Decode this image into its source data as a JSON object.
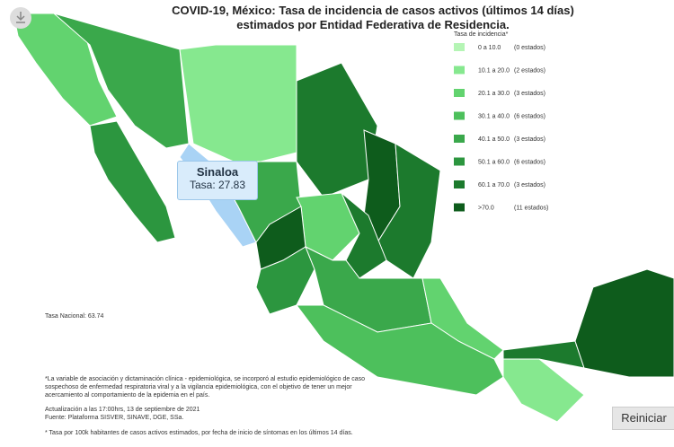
{
  "header": {
    "title_line1": "COVID-19, México: Tasa de incidencia de casos activos (últimos 14 días)",
    "title_line2": "estimados por Entidad Federativa de Residencia."
  },
  "legend": {
    "title": "Tasa de incidencia*",
    "items": [
      {
        "range": "0 a 10.0",
        "count": "(0 estados)",
        "color": "#b5f5b5"
      },
      {
        "range": "10.1 a 20.0",
        "count": "(2 estados)",
        "color": "#86e88f"
      },
      {
        "range": "20.1 a 30.0",
        "count": "(3 estados)",
        "color": "#62d36f"
      },
      {
        "range": "30.1 a 40.0",
        "count": "(6 estados)",
        "color": "#4dc05c"
      },
      {
        "range": "40.1 a 50.0",
        "count": "(3 estados)",
        "color": "#3aa84b"
      },
      {
        "range": "50.1 a 60.0",
        "count": "(6 estados)",
        "color": "#2c963f"
      },
      {
        "range": "60.1 a 70.0",
        "count": "(3 estados)",
        "color": "#1c7a2d"
      },
      {
        "range": ">70.0",
        "count": "(11 estados)",
        "color": "#0e5c1c"
      }
    ]
  },
  "tooltip": {
    "state": "Sinaloa",
    "rate": "Tasa: 27.83"
  },
  "national_rate": "Tasa Nacional: 63.74",
  "notes": {
    "association": "*La variable de asociación y dictaminación clínica - epidemiológica, se incorporó al estudio epidemiológico de caso sospechoso de enfermedad respiratoria viral y a la vigilancia epidemiológica, con el objetivo de tener un mejor acercamiento al comportamiento de la epidemia en el país.",
    "update": "Actualización a las 17:00hrs, 13 de septiembre de 2021",
    "source": "Fuente: Plataforma SISVER, SINAVE, DGE, SSa.",
    "rate_note": "* Tasa por 100k habitantes de casos activos estimados, por fecha de inicio de síntomas en los últimos 14 días."
  },
  "button": "Reiniciar"
}
